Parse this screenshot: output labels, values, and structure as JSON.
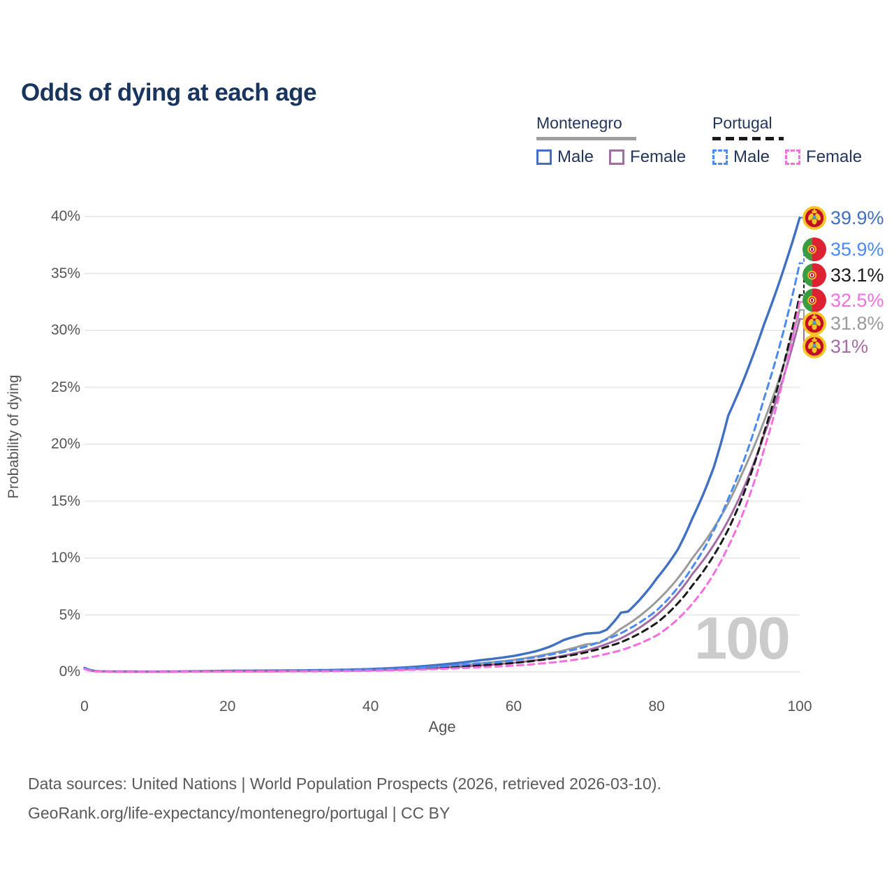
{
  "title": "Odds of dying at each age",
  "legend": {
    "groups": [
      {
        "name": "Montenegro",
        "style": "solid",
        "items": [
          {
            "label": "Male",
            "series": "mne_male"
          },
          {
            "label": "Female",
            "series": "mne_female"
          }
        ]
      },
      {
        "name": "Portugal",
        "style": "dashed",
        "items": [
          {
            "label": "Male",
            "series": "por_male"
          },
          {
            "label": "Female",
            "series": "por_female"
          }
        ]
      }
    ]
  },
  "chart_data": {
    "type": "line",
    "title": "Odds of dying at each age",
    "xlabel": "Age",
    "ylabel": "Probability of dying",
    "xlim": [
      0,
      100
    ],
    "ylim": [
      0,
      40
    ],
    "x_ticks": [
      0,
      20,
      40,
      60,
      80,
      100
    ],
    "y_ticks": [
      {
        "value": 0,
        "label": "0%"
      },
      {
        "value": 5,
        "label": "5%"
      },
      {
        "value": 10,
        "label": "10%"
      },
      {
        "value": 15,
        "label": "15%"
      },
      {
        "value": 20,
        "label": "20%"
      },
      {
        "value": 25,
        "label": "25%"
      },
      {
        "value": 30,
        "label": "30%"
      },
      {
        "value": 35,
        "label": "35%"
      },
      {
        "value": 40,
        "label": "40%"
      }
    ],
    "grid": "horizontal",
    "legend_position": "top-right",
    "watermark": "100",
    "unit": "percent",
    "series": [
      {
        "key": "mne_total",
        "name": "Montenegro",
        "sex": "Total",
        "flag": "montenegro",
        "color": "#9b9b9b",
        "dash": false,
        "width": 3,
        "end_label": "31.8%",
        "end_value": 31.8,
        "points": [
          [
            0,
            0.3
          ],
          [
            2,
            0.04
          ],
          [
            5,
            0.025
          ],
          [
            10,
            0.02
          ],
          [
            15,
            0.04
          ],
          [
            20,
            0.07
          ],
          [
            25,
            0.08
          ],
          [
            30,
            0.1
          ],
          [
            35,
            0.13
          ],
          [
            40,
            0.19
          ],
          [
            45,
            0.3
          ],
          [
            50,
            0.48
          ],
          [
            55,
            0.73
          ],
          [
            60,
            1.05
          ],
          [
            65,
            1.6
          ],
          [
            70,
            2.4
          ],
          [
            72,
            2.55
          ],
          [
            75,
            3.8
          ],
          [
            80,
            6.2
          ],
          [
            85,
            10.0
          ],
          [
            90,
            14.8
          ],
          [
            92,
            17.5
          ],
          [
            95,
            22.0
          ],
          [
            100,
            31.8
          ]
        ]
      },
      {
        "key": "mne_male",
        "name": "Montenegro",
        "sex": "Male",
        "flag": "montenegro",
        "color": "#3f70c3",
        "dash": false,
        "width": 3.4,
        "end_label": "39.9%",
        "end_value": 39.9,
        "points": [
          [
            0,
            0.35
          ],
          [
            2,
            0.05
          ],
          [
            5,
            0.03
          ],
          [
            10,
            0.025
          ],
          [
            15,
            0.05
          ],
          [
            20,
            0.1
          ],
          [
            25,
            0.11
          ],
          [
            30,
            0.13
          ],
          [
            35,
            0.17
          ],
          [
            40,
            0.25
          ],
          [
            45,
            0.4
          ],
          [
            50,
            0.65
          ],
          [
            55,
            1.0
          ],
          [
            60,
            1.4
          ],
          [
            63,
            1.8
          ],
          [
            65,
            2.2
          ],
          [
            67,
            2.8
          ],
          [
            68,
            3.0
          ],
          [
            70,
            3.35
          ],
          [
            71,
            3.4
          ],
          [
            72,
            3.45
          ],
          [
            73,
            3.7
          ],
          [
            75,
            5.2
          ],
          [
            76,
            5.3
          ],
          [
            78,
            6.6
          ],
          [
            80,
            8.2
          ],
          [
            83,
            10.8
          ],
          [
            85,
            13.5
          ],
          [
            88,
            18.0
          ],
          [
            90,
            22.5
          ],
          [
            95,
            30.5
          ],
          [
            100,
            39.9
          ]
        ]
      },
      {
        "key": "mne_female",
        "name": "Montenegro",
        "sex": "Female",
        "flag": "montenegro",
        "color": "#a46ca6",
        "dash": false,
        "width": 3,
        "end_label": "31%",
        "end_value": 31.0,
        "points": [
          [
            0,
            0.28
          ],
          [
            2,
            0.035
          ],
          [
            5,
            0.02
          ],
          [
            10,
            0.015
          ],
          [
            15,
            0.03
          ],
          [
            20,
            0.045
          ],
          [
            25,
            0.05
          ],
          [
            30,
            0.065
          ],
          [
            35,
            0.09
          ],
          [
            40,
            0.14
          ],
          [
            45,
            0.22
          ],
          [
            50,
            0.36
          ],
          [
            55,
            0.55
          ],
          [
            60,
            0.8
          ],
          [
            65,
            1.2
          ],
          [
            70,
            1.85
          ],
          [
            75,
            2.95
          ],
          [
            80,
            5.0
          ],
          [
            85,
            8.6
          ],
          [
            90,
            13.3
          ],
          [
            95,
            20.8
          ],
          [
            100,
            31.0
          ]
        ]
      },
      {
        "key": "por_total",
        "name": "Portugal",
        "sex": "Total",
        "flag": "portugal",
        "color": "#1a1a1a",
        "dash": true,
        "width": 3,
        "end_label": "33.1%",
        "end_value": 33.1,
        "points": [
          [
            0,
            0.27
          ],
          [
            2,
            0.035
          ],
          [
            5,
            0.018
          ],
          [
            10,
            0.013
          ],
          [
            15,
            0.03
          ],
          [
            20,
            0.05
          ],
          [
            25,
            0.06
          ],
          [
            30,
            0.075
          ],
          [
            35,
            0.1
          ],
          [
            40,
            0.15
          ],
          [
            45,
            0.24
          ],
          [
            50,
            0.38
          ],
          [
            55,
            0.56
          ],
          [
            60,
            0.78
          ],
          [
            65,
            1.15
          ],
          [
            70,
            1.7
          ],
          [
            75,
            2.6
          ],
          [
            80,
            4.3
          ],
          [
            85,
            7.6
          ],
          [
            90,
            12.5
          ],
          [
            95,
            21.0
          ],
          [
            100,
            33.1
          ]
        ]
      },
      {
        "key": "por_male",
        "name": "Portugal",
        "sex": "Male",
        "flag": "portugal",
        "color": "#4a8af4",
        "dash": true,
        "width": 3,
        "end_label": "35.9%",
        "end_value": 35.9,
        "points": [
          [
            0,
            0.3
          ],
          [
            2,
            0.04
          ],
          [
            5,
            0.02
          ],
          [
            10,
            0.015
          ],
          [
            15,
            0.04
          ],
          [
            20,
            0.07
          ],
          [
            25,
            0.08
          ],
          [
            30,
            0.1
          ],
          [
            35,
            0.13
          ],
          [
            40,
            0.2
          ],
          [
            45,
            0.32
          ],
          [
            50,
            0.5
          ],
          [
            55,
            0.75
          ],
          [
            60,
            1.0
          ],
          [
            65,
            1.5
          ],
          [
            70,
            2.2
          ],
          [
            75,
            3.4
          ],
          [
            80,
            5.4
          ],
          [
            85,
            9.2
          ],
          [
            90,
            15.2
          ],
          [
            95,
            24.0
          ],
          [
            100,
            35.9
          ]
        ]
      },
      {
        "key": "por_female",
        "name": "Portugal",
        "sex": "Female",
        "flag": "portugal",
        "color": "#f56fe0",
        "dash": true,
        "width": 3,
        "end_label": "32.5%",
        "end_value": 32.5,
        "points": [
          [
            0,
            0.25
          ],
          [
            2,
            0.03
          ],
          [
            5,
            0.015
          ],
          [
            10,
            0.01
          ],
          [
            15,
            0.02
          ],
          [
            20,
            0.03
          ],
          [
            25,
            0.035
          ],
          [
            30,
            0.045
          ],
          [
            35,
            0.065
          ],
          [
            40,
            0.1
          ],
          [
            45,
            0.17
          ],
          [
            50,
            0.27
          ],
          [
            55,
            0.4
          ],
          [
            60,
            0.55
          ],
          [
            65,
            0.8
          ],
          [
            70,
            1.2
          ],
          [
            75,
            1.9
          ],
          [
            80,
            3.2
          ],
          [
            85,
            6.0
          ],
          [
            90,
            11.0
          ],
          [
            95,
            19.5
          ],
          [
            100,
            32.5
          ]
        ]
      }
    ]
  },
  "footer": {
    "line1": "Data sources: United Nations | World Population Prospects (2026, retrieved 2026-03-10).",
    "line2": "GeoRank.org/life-expectancy/montenegro/portugal | CC BY"
  }
}
